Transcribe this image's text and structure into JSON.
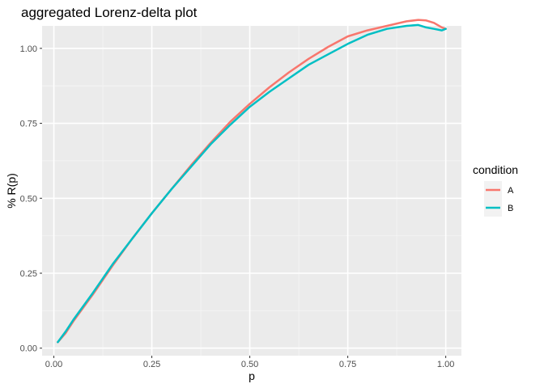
{
  "chart_data": {
    "type": "line",
    "title": "aggregated  Lorenz-delta plot",
    "xlabel": "p",
    "ylabel": "% R(p)",
    "xlim": [
      -0.03,
      1.04
    ],
    "ylim": [
      -0.025,
      1.075
    ],
    "x_ticks": [
      0,
      0.25,
      0.5,
      0.75,
      1
    ],
    "x_tick_labels": [
      "0.00",
      "0.25",
      "0.50",
      "0.75",
      "1.00"
    ],
    "y_ticks": [
      0,
      0.25,
      0.5,
      0.75,
      1
    ],
    "y_tick_labels": [
      "0.00",
      "0.25",
      "0.50",
      "0.75",
      "1.00"
    ],
    "grid": true,
    "legend": {
      "title": "condition",
      "placement": "right"
    },
    "series": [
      {
        "name": "A",
        "color": "#F8766D",
        "x": [
          0.01,
          0.03,
          0.05,
          0.1,
          0.15,
          0.2,
          0.25,
          0.3,
          0.35,
          0.4,
          0.45,
          0.5,
          0.55,
          0.6,
          0.65,
          0.7,
          0.75,
          0.8,
          0.85,
          0.9,
          0.93,
          0.95,
          0.97,
          0.99,
          1.0
        ],
        "y": [
          0.02,
          0.05,
          0.09,
          0.18,
          0.275,
          0.365,
          0.45,
          0.53,
          0.61,
          0.685,
          0.755,
          0.815,
          0.87,
          0.92,
          0.965,
          1.005,
          1.04,
          1.06,
          1.075,
          1.09,
          1.095,
          1.093,
          1.085,
          1.07,
          1.065
        ]
      },
      {
        "name": "B",
        "color": "#00BFC4",
        "x": [
          0.01,
          0.03,
          0.05,
          0.1,
          0.15,
          0.2,
          0.25,
          0.3,
          0.35,
          0.4,
          0.45,
          0.5,
          0.55,
          0.6,
          0.65,
          0.7,
          0.75,
          0.8,
          0.85,
          0.9,
          0.93,
          0.95,
          0.97,
          0.99,
          1.0
        ],
        "y": [
          0.02,
          0.055,
          0.095,
          0.185,
          0.28,
          0.365,
          0.45,
          0.53,
          0.605,
          0.68,
          0.745,
          0.805,
          0.855,
          0.9,
          0.945,
          0.98,
          1.015,
          1.045,
          1.065,
          1.075,
          1.078,
          1.07,
          1.065,
          1.06,
          1.065
        ]
      }
    ]
  }
}
